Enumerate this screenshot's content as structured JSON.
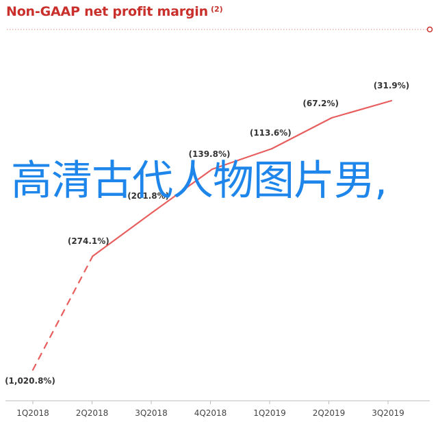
{
  "header": {
    "title": "Non-GAAP net profit margin",
    "footnote": "(2)"
  },
  "overlay": {
    "text": "高清古代人物图片男,"
  },
  "colors": {
    "line": "#e85d5d",
    "title": "#c9302c",
    "overlay_text": "#1e86ea",
    "axis": "#bbbbbb",
    "label": "#333333"
  },
  "chart_data": {
    "type": "line",
    "title": "Non-GAAP net profit margin",
    "categories": [
      "1Q2018",
      "2Q2018",
      "3Q2018",
      "4Q2018",
      "1Q2019",
      "2Q2019",
      "3Q2019"
    ],
    "values": [
      -1020.8,
      -274.1,
      -201.8,
      -139.8,
      -113.6,
      -67.2,
      -31.9
    ],
    "data_labels": [
      "(1,020.8%)",
      "(274.1%)",
      "(201.8%)",
      "(139.8%)",
      "(113.6%)",
      "(67.2%)",
      "(31.9%)"
    ],
    "style": [
      "dashed",
      "solid",
      "solid",
      "solid",
      "solid",
      "solid"
    ],
    "ylabel": "",
    "xlabel": "",
    "grid": false,
    "legend": "none"
  }
}
